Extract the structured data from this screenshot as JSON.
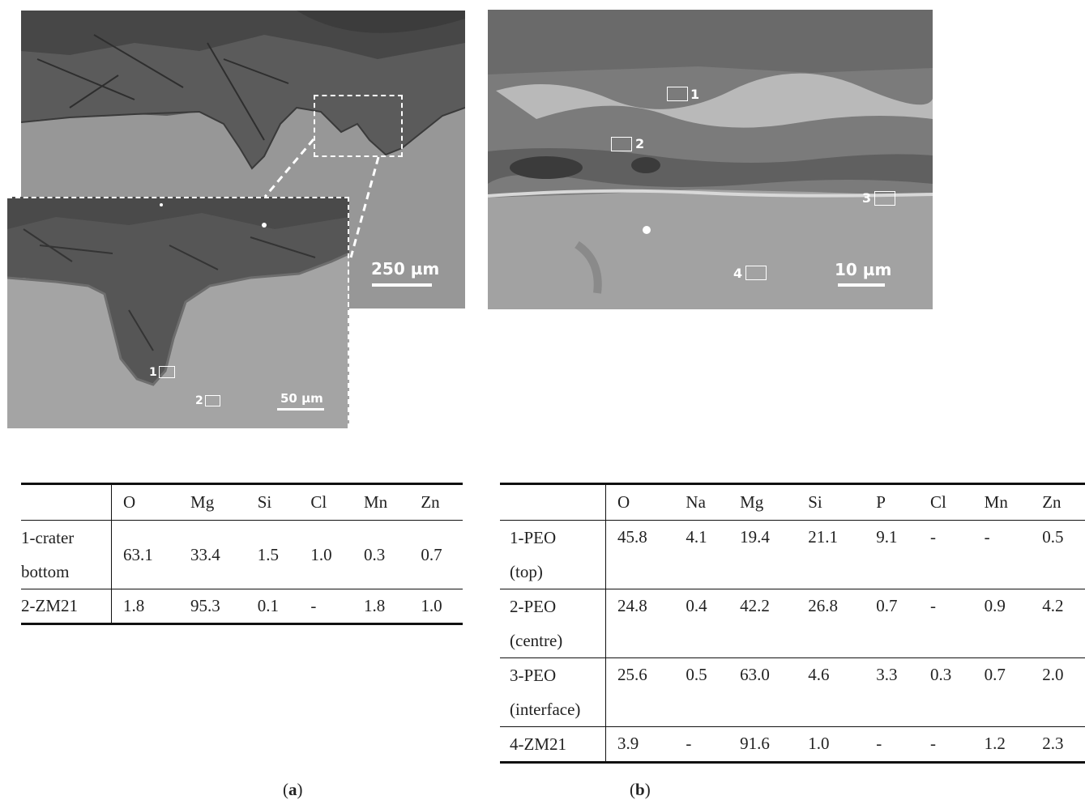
{
  "panel_a": {
    "micrograph_large": {
      "scale_label": "250 µm"
    },
    "micrograph_inset": {
      "scale_label": "50 µm",
      "spots": [
        "1",
        "2"
      ]
    },
    "table": {
      "columns": [
        "O",
        "Mg",
        "Si",
        "Cl",
        "Mn",
        "Zn"
      ],
      "rows": [
        {
          "label_line1": "1-crater",
          "label_line2": "bottom",
          "values": [
            "63.1",
            "33.4",
            "1.5",
            "1.0",
            "0.3",
            "0.7"
          ]
        },
        {
          "label_line1": "2-ZM21",
          "label_line2": "",
          "values": [
            "1.8",
            "95.3",
            "0.1",
            "-",
            "1.8",
            "1.0"
          ]
        }
      ]
    },
    "caption_letter": "a"
  },
  "panel_b": {
    "micrograph": {
      "scale_label": "10 µm",
      "spots": [
        "1",
        "2",
        "3",
        "4"
      ]
    },
    "table": {
      "columns": [
        "O",
        "Na",
        "Mg",
        "Si",
        "P",
        "Cl",
        "Mn",
        "Zn"
      ],
      "rows": [
        {
          "label_line1": "1-PEO",
          "label_line2": "(top)",
          "values": [
            "45.8",
            "4.1",
            "19.4",
            "21.1",
            "9.1",
            "-",
            "-",
            "0.5"
          ]
        },
        {
          "label_line1": "2-PEO",
          "label_line2": "(centre)",
          "values": [
            "24.8",
            "0.4",
            "42.2",
            "26.8",
            "0.7",
            "-",
            "0.9",
            "4.2"
          ]
        },
        {
          "label_line1": "3-PEO",
          "label_line2": "(interface)",
          "values": [
            "25.6",
            "0.5",
            "63.0",
            "4.6",
            "3.3",
            "0.3",
            "0.7",
            "2.0"
          ]
        },
        {
          "label_line1": "4-ZM21",
          "label_line2": "",
          "values": [
            "3.9",
            "-",
            "91.6",
            "1.0",
            "-",
            "-",
            "1.2",
            "2.3"
          ]
        }
      ]
    },
    "caption_letter": "b"
  },
  "colors": {
    "sem_dark": "#4a4a4a",
    "sem_substrate": "#9a9a9a",
    "rule": "#111111"
  }
}
